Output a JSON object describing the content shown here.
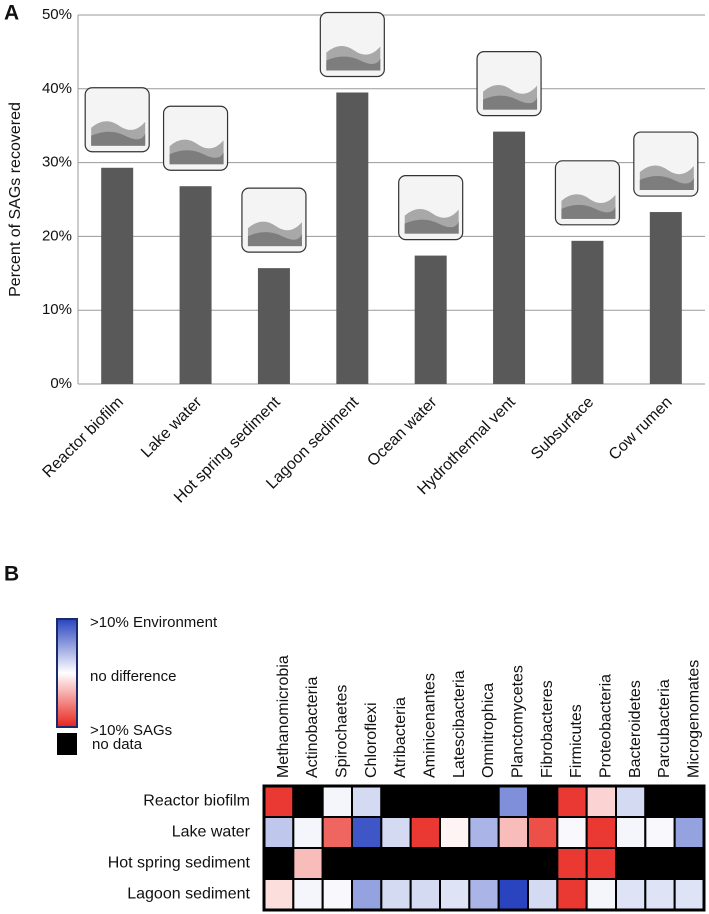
{
  "chart_data": [
    {
      "type": "bar",
      "panel": "A",
      "ylabel": "Percent of SAGs recovered",
      "categories": [
        "Reactor biofilm",
        "Lake water",
        "Hot spring sediment",
        "Lagoon sediment",
        "Ocean water",
        "Hydrothermal vent",
        "Subsurface",
        "Cow rumen"
      ],
      "values": [
        29.3,
        26.8,
        15.7,
        39.5,
        17.4,
        34.2,
        19.4,
        23.3
      ],
      "color": "#595959",
      "ylim": [
        0,
        50
      ],
      "yticks": [
        {
          "value": 0,
          "label": "0%"
        },
        {
          "value": 10,
          "label": "10%"
        },
        {
          "value": 20,
          "label": "20%"
        },
        {
          "value": 30,
          "label": "30%"
        },
        {
          "value": 40,
          "label": "40%"
        },
        {
          "value": 50,
          "label": "50%"
        }
      ],
      "grid": true
    },
    {
      "type": "heatmap",
      "panel": "B",
      "rows": [
        "Reactor biofilm",
        "Lake water",
        "Hot spring sediment",
        "Lagoon sediment"
      ],
      "columns": [
        "Methanomicrobia",
        "Actinobacteria",
        "Spirochaetes",
        "Chloroflexi",
        "Atribacteria",
        "Aminicenantes",
        "Latescibacteria",
        "Omnitrophica",
        "Planctomycetes",
        "Fibrobacteres",
        "Firmicutes",
        "Proteobacteria",
        "Bacteroidetes",
        "Parcubacteria",
        "Microgenomates"
      ],
      "values": [
        [
          -9,
          null,
          0.5,
          2,
          null,
          null,
          null,
          null,
          6,
          null,
          -9,
          -2,
          2,
          null,
          null
        ],
        [
          3,
          0.5,
          -7,
          9,
          2,
          -9,
          -0.5,
          4,
          -3,
          -8,
          0.3,
          -9,
          0.5,
          0.3,
          5
        ],
        [
          null,
          -3,
          null,
          null,
          null,
          null,
          null,
          null,
          null,
          null,
          -9,
          -9,
          null,
          null,
          null
        ],
        [
          -1.5,
          0.5,
          0.3,
          5,
          2,
          2,
          1.5,
          4,
          10,
          2,
          -9,
          0.5,
          1.5,
          1.5,
          1.5
        ]
      ],
      "colorbar": {
        "ticks": [
          {
            "value": 10,
            "label": ">10% Environment"
          },
          {
            "value": 0,
            "label": "no difference"
          },
          {
            "value": -10,
            "label": ">10% SAGs"
          }
        ],
        "colors": [
          "#2a44c0",
          "#ffffff",
          "#e8231c"
        ]
      },
      "null_label": "no data",
      "null_color": "#000000"
    }
  ]
}
